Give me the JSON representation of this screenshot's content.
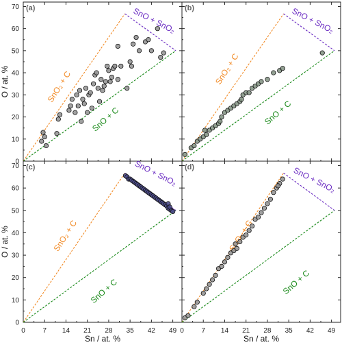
{
  "chart_data": {
    "type": "scatter",
    "shared_axes": {
      "xlabel": "Sn / at. %",
      "ylabel": "O / at. %",
      "xlim": [
        0,
        52
      ],
      "ylim": [
        0,
        72
      ],
      "xticks": [
        0,
        7,
        14,
        21,
        28,
        35,
        42,
        49
      ],
      "yticks": [
        0,
        10,
        20,
        30,
        40,
        50,
        60,
        70
      ],
      "grid": false
    },
    "boundary_lines": [
      {
        "name": "SnO2 + C",
        "label": "SnO₂ + C",
        "color": "#F28C28",
        "points": [
          [
            0,
            0
          ],
          [
            33.3,
            66.7
          ]
        ]
      },
      {
        "name": "SnO + C",
        "label": "SnO + C",
        "color": "#1A8A1A",
        "points": [
          [
            0,
            0
          ],
          [
            50,
            50
          ]
        ]
      },
      {
        "name": "SnO + SnO2",
        "label": "SnO + SnO₂",
        "color": "#6A2BC2",
        "points": [
          [
            33.3,
            66.7
          ],
          [
            50,
            50
          ]
        ]
      }
    ],
    "panels": [
      {
        "id": "a",
        "letter": "(a)",
        "marker_fill": "#8f8f8f",
        "points": [
          [
            6,
            9
          ],
          [
            6.5,
            13
          ],
          [
            7,
            11
          ],
          [
            7.5,
            7
          ],
          [
            11,
            12.5
          ],
          [
            11.5,
            19
          ],
          [
            12,
            21
          ],
          [
            15,
            23
          ],
          [
            15.5,
            25
          ],
          [
            16,
            28
          ],
          [
            17,
            22
          ],
          [
            17.5,
            30
          ],
          [
            18,
            25
          ],
          [
            18.5,
            32
          ],
          [
            19,
            18
          ],
          [
            19.5,
            28
          ],
          [
            20,
            26
          ],
          [
            20.5,
            33
          ],
          [
            21,
            22
          ],
          [
            21.5,
            30
          ],
          [
            22,
            31
          ],
          [
            22.5,
            24
          ],
          [
            23,
            35
          ],
          [
            23.5,
            39
          ],
          [
            24,
            40
          ],
          [
            24.5,
            33
          ],
          [
            25,
            27
          ],
          [
            25.5,
            37
          ],
          [
            26,
            32
          ],
          [
            26.5,
            34
          ],
          [
            27,
            36
          ],
          [
            27.5,
            43
          ],
          [
            28,
            41
          ],
          [
            28.5,
            36
          ],
          [
            29,
            38
          ],
          [
            29.5,
            42
          ],
          [
            30,
            43
          ],
          [
            31,
            37
          ],
          [
            31,
            52
          ],
          [
            32,
            43
          ],
          [
            34,
            33
          ],
          [
            35,
            45
          ],
          [
            35.5,
            43
          ],
          [
            36,
            53
          ],
          [
            37,
            56
          ],
          [
            38,
            50
          ],
          [
            40,
            54
          ],
          [
            41,
            55
          ],
          [
            42,
            50
          ],
          [
            44,
            60
          ],
          [
            45,
            47
          ],
          [
            46,
            49
          ]
        ]
      },
      {
        "id": "b",
        "letter": "(b)",
        "marker_fill": "#7f8f7f",
        "points": [
          [
            1,
            3
          ],
          [
            3,
            6
          ],
          [
            4,
            7
          ],
          [
            5,
            9
          ],
          [
            6,
            10
          ],
          [
            7,
            11
          ],
          [
            7.5,
            14
          ],
          [
            8,
            12
          ],
          [
            9,
            14
          ],
          [
            10,
            15
          ],
          [
            11,
            16
          ],
          [
            12,
            17
          ],
          [
            12.5,
            18
          ],
          [
            13,
            20
          ],
          [
            14,
            22
          ],
          [
            15,
            23
          ],
          [
            16,
            24
          ],
          [
            17,
            25
          ],
          [
            18,
            26
          ],
          [
            19,
            27
          ],
          [
            19.5,
            28
          ],
          [
            20,
            30
          ],
          [
            21,
            31
          ],
          [
            22,
            31
          ],
          [
            23,
            33
          ],
          [
            24,
            34
          ],
          [
            25,
            35
          ],
          [
            26,
            36
          ],
          [
            28,
            37
          ],
          [
            30,
            40
          ],
          [
            32,
            41
          ],
          [
            33,
            42
          ],
          [
            46,
            49
          ]
        ]
      },
      {
        "id": "c",
        "letter": "(c)",
        "marker_fill": "#4a4a8a",
        "points": [
          [
            33.5,
            65.5
          ],
          [
            34,
            65
          ],
          [
            34.5,
            64
          ],
          [
            35,
            64
          ],
          [
            35.5,
            63.5
          ],
          [
            36,
            63
          ],
          [
            36.5,
            62.5
          ],
          [
            37,
            62
          ],
          [
            37.5,
            61.5
          ],
          [
            38,
            61
          ],
          [
            38.5,
            60.5
          ],
          [
            39,
            60
          ],
          [
            39.5,
            59.5
          ],
          [
            40,
            59
          ],
          [
            40.5,
            58.5
          ],
          [
            41,
            58
          ],
          [
            41.5,
            57.5
          ],
          [
            42,
            57
          ],
          [
            42.5,
            56.5
          ],
          [
            43,
            56
          ],
          [
            43.5,
            55.5
          ],
          [
            44,
            55
          ],
          [
            44.5,
            54.5
          ],
          [
            45,
            54
          ],
          [
            45.5,
            53.5
          ],
          [
            46,
            53
          ],
          [
            46.5,
            52.5
          ],
          [
            47,
            52
          ],
          [
            47.5,
            51
          ],
          [
            48,
            50.5
          ],
          [
            48.5,
            50
          ],
          [
            49,
            49.5
          ],
          [
            47.5,
            53
          ],
          [
            48,
            51.5
          ]
        ]
      },
      {
        "id": "d",
        "letter": "(d)",
        "marker_fill": "#8f8f8f",
        "points": [
          [
            1,
            2
          ],
          [
            2,
            3
          ],
          [
            4,
            7
          ],
          [
            5,
            9
          ],
          [
            7,
            13
          ],
          [
            8,
            15
          ],
          [
            9,
            17
          ],
          [
            10,
            19
          ],
          [
            11,
            21
          ],
          [
            12,
            24
          ],
          [
            13,
            25
          ],
          [
            14,
            27
          ],
          [
            15,
            29
          ],
          [
            16,
            31
          ],
          [
            17,
            32
          ],
          [
            17.5,
            35
          ],
          [
            18,
            33
          ],
          [
            19,
            36
          ],
          [
            20,
            38
          ],
          [
            21,
            39
          ],
          [
            22,
            41
          ],
          [
            23,
            43
          ],
          [
            24,
            46
          ],
          [
            25,
            47
          ],
          [
            26,
            49
          ],
          [
            27,
            51
          ],
          [
            28,
            53
          ],
          [
            29,
            55
          ],
          [
            30,
            58
          ],
          [
            31,
            60
          ],
          [
            32,
            62
          ],
          [
            33,
            64
          ],
          [
            31.5,
            61
          ]
        ]
      }
    ]
  }
}
